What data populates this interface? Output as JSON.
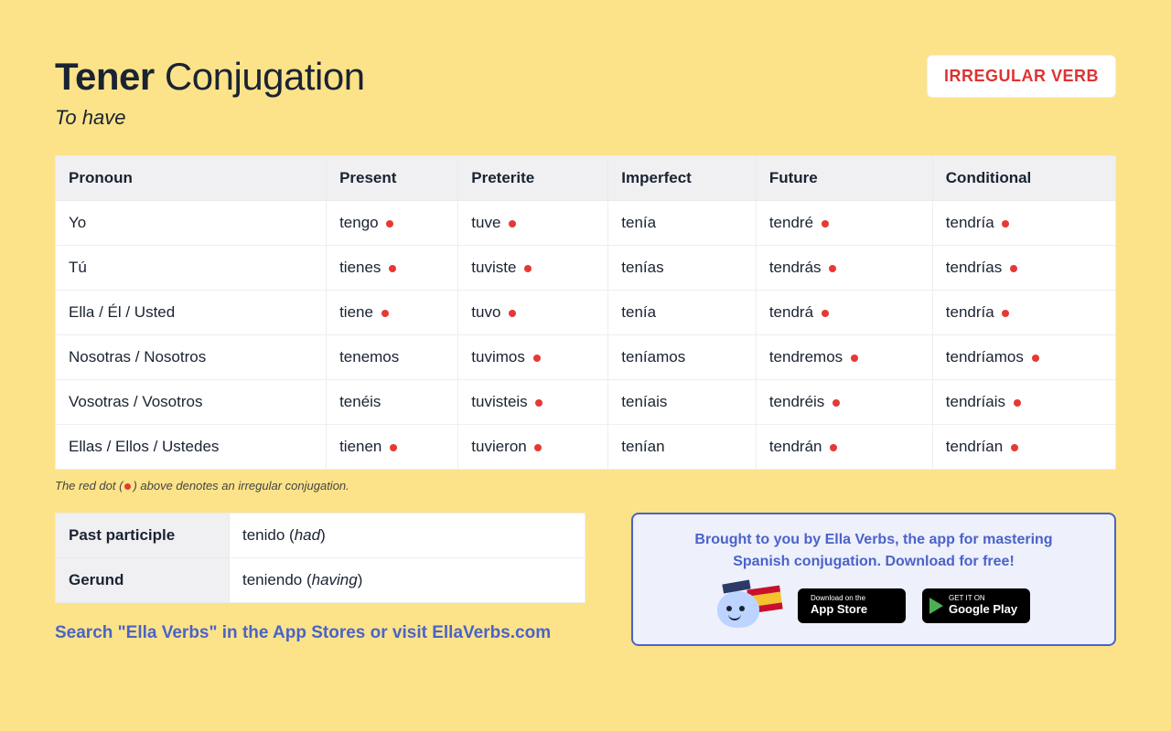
{
  "colors": {
    "page_bg": "#fce38a",
    "text_primary": "#1a2332",
    "badge_text": "#d33",
    "badge_bg": "#ffffff",
    "table_header_bg": "#f0f0f2",
    "table_bg": "#ffffff",
    "table_border": "#eee",
    "irregular_dot": "#e53935",
    "promo_bg": "#eef0fb",
    "promo_border": "#4a63c9",
    "link_color": "#4a63c9",
    "store_badge_bg": "#000000"
  },
  "header": {
    "verb": "Tener",
    "title_suffix": " Conjugation",
    "translation": "To have",
    "badge_label": "IRREGULAR VERB"
  },
  "table": {
    "columns": [
      "Pronoun",
      "Present",
      "Preterite",
      "Imperfect",
      "Future",
      "Conditional"
    ],
    "rows": [
      {
        "pronoun": "Yo",
        "cells": [
          {
            "text": "tengo",
            "irregular": true
          },
          {
            "text": "tuve",
            "irregular": true
          },
          {
            "text": "tenía",
            "irregular": false
          },
          {
            "text": "tendré",
            "irregular": true
          },
          {
            "text": "tendría",
            "irregular": true
          }
        ]
      },
      {
        "pronoun": "Tú",
        "cells": [
          {
            "text": "tienes",
            "irregular": true
          },
          {
            "text": "tuviste",
            "irregular": true
          },
          {
            "text": "tenías",
            "irregular": false
          },
          {
            "text": "tendrás",
            "irregular": true
          },
          {
            "text": "tendrías",
            "irregular": true
          }
        ]
      },
      {
        "pronoun": "Ella / Él / Usted",
        "cells": [
          {
            "text": "tiene",
            "irregular": true
          },
          {
            "text": "tuvo",
            "irregular": true
          },
          {
            "text": "tenía",
            "irregular": false
          },
          {
            "text": "tendrá",
            "irregular": true
          },
          {
            "text": "tendría",
            "irregular": true
          }
        ]
      },
      {
        "pronoun": "Nosotras / Nosotros",
        "cells": [
          {
            "text": "tenemos",
            "irregular": false
          },
          {
            "text": "tuvimos",
            "irregular": true
          },
          {
            "text": "teníamos",
            "irregular": false
          },
          {
            "text": "tendremos",
            "irregular": true
          },
          {
            "text": "tendríamos",
            "irregular": true
          }
        ]
      },
      {
        "pronoun": "Vosotras / Vosotros",
        "cells": [
          {
            "text": "tenéis",
            "irregular": false
          },
          {
            "text": "tuvisteis",
            "irregular": true
          },
          {
            "text": "teníais",
            "irregular": false
          },
          {
            "text": "tendréis",
            "irregular": true
          },
          {
            "text": "tendríais",
            "irregular": true
          }
        ]
      },
      {
        "pronoun": "Ellas / Ellos / Ustedes",
        "cells": [
          {
            "text": "tienen",
            "irregular": true
          },
          {
            "text": "tuvieron",
            "irregular": true
          },
          {
            "text": "tenían",
            "irregular": false
          },
          {
            "text": "tendrán",
            "irregular": true
          },
          {
            "text": "tendrían",
            "irregular": true
          }
        ]
      }
    ]
  },
  "legend": {
    "prefix": "The red dot (",
    "suffix": ") above denotes an irregular conjugation."
  },
  "participles": {
    "rows": [
      {
        "label": "Past participle",
        "value": "tenido",
        "paren": "had"
      },
      {
        "label": "Gerund",
        "value": "teniendo",
        "paren": "having"
      }
    ]
  },
  "promo": {
    "line1": "Brought to you by Ella Verbs, the app for mastering",
    "line2": "Spanish conjugation. Download for free!",
    "appstore_small": "Download on the",
    "appstore_big": "App Store",
    "gplay_small": "GET IT ON",
    "gplay_big": "Google Play"
  },
  "search_line": "Search \"Ella Verbs\" in the App Stores or visit EllaVerbs.com"
}
